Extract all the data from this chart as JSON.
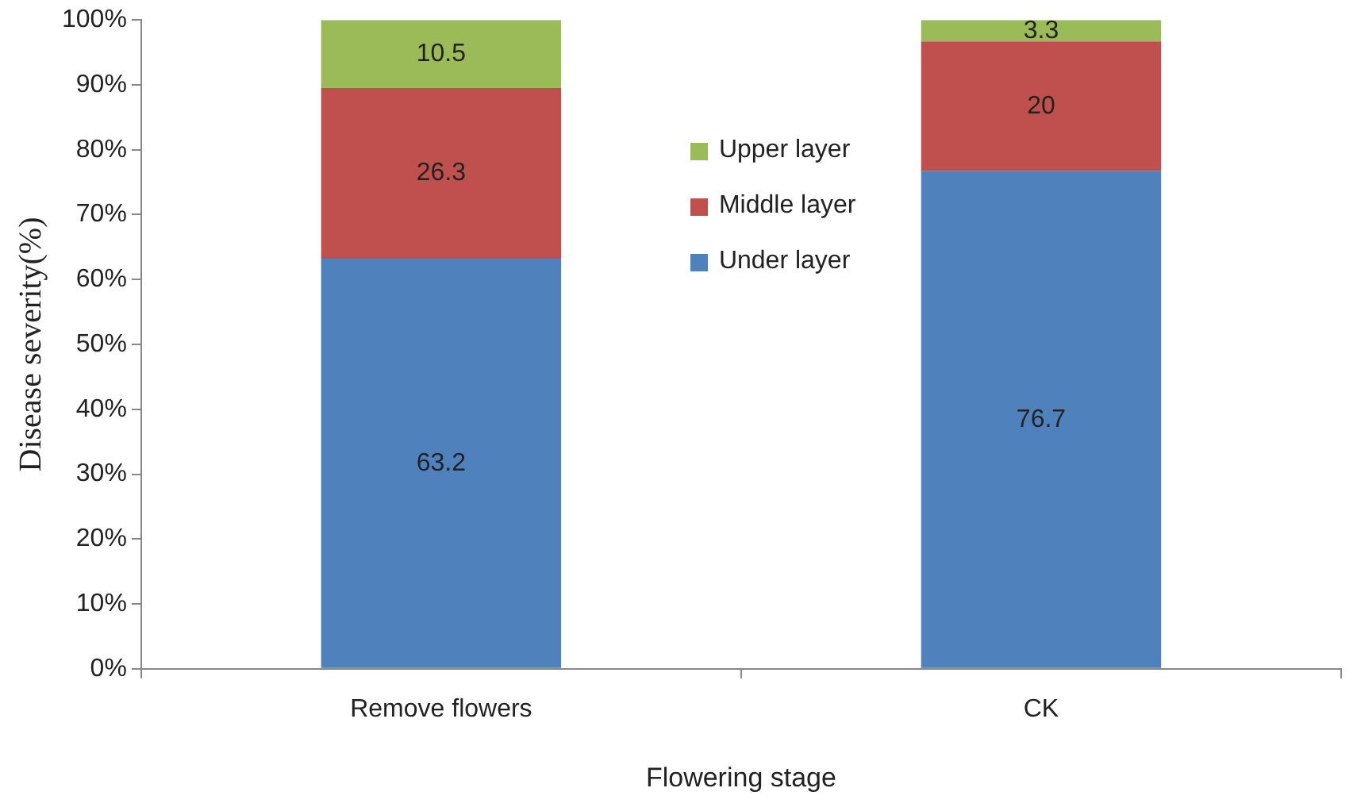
{
  "chart_data": {
    "type": "bar",
    "stacked": true,
    "xlabel": "Flowering stage",
    "ylabel": "Disease severity(%)",
    "categories": [
      "Remove flowers",
      "CK"
    ],
    "series": [
      {
        "name": "Under layer",
        "color": "#4f81bd",
        "values": [
          63.2,
          76.7
        ]
      },
      {
        "name": "Middle layer",
        "color": "#c0504d",
        "values": [
          26.3,
          20
        ]
      },
      {
        "name": "Upper layer",
        "color": "#9bbb59",
        "values": [
          10.5,
          3.3
        ]
      }
    ],
    "ylim": [
      0,
      100
    ],
    "yticks": [
      {
        "value": 0,
        "label": "0%"
      },
      {
        "value": 10,
        "label": "10%"
      },
      {
        "value": 20,
        "label": "20%"
      },
      {
        "value": 30,
        "label": "30%"
      },
      {
        "value": 40,
        "label": "40%"
      },
      {
        "value": 50,
        "label": "50%"
      },
      {
        "value": 60,
        "label": "60%"
      },
      {
        "value": 70,
        "label": "70%"
      },
      {
        "value": 80,
        "label": "80%"
      },
      {
        "value": 90,
        "label": "90%"
      },
      {
        "value": 100,
        "label": "100%"
      }
    ],
    "grid": false,
    "legend": "top",
    "data_labels": true
  }
}
